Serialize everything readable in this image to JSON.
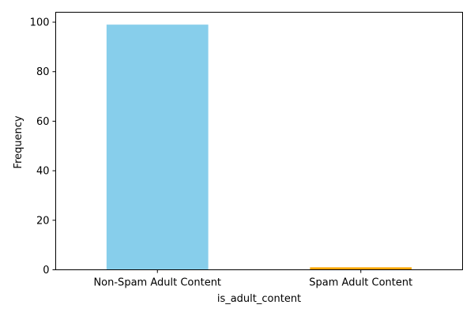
{
  "chart_data": {
    "type": "bar",
    "categories": [
      "Non-Spam Adult Content",
      "Spam Adult Content"
    ],
    "values": [
      99,
      1
    ],
    "colors": [
      "#87CEEB",
      "#FFA500"
    ],
    "xlabel": "is_adult_content",
    "ylabel": "Frequency",
    "ylim": [
      0,
      104
    ],
    "yticks": [
      0,
      20,
      40,
      60,
      80,
      100
    ],
    "grid": false,
    "legend": false
  }
}
